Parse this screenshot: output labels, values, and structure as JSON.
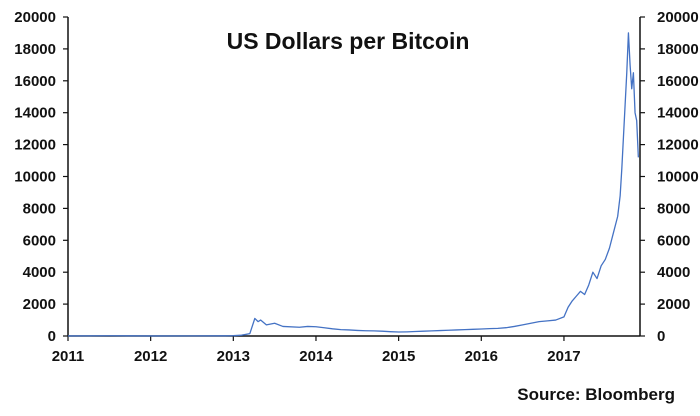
{
  "chart_data": {
    "type": "line",
    "title": "US Dollars per Bitcoin",
    "source": "Source: Bloomberg",
    "xlabel": "",
    "ylabel": "",
    "xlim": [
      2011.0,
      2017.92
    ],
    "ylim": [
      0,
      20000
    ],
    "x_ticks": [
      "2011",
      "2012",
      "2013",
      "2014",
      "2015",
      "2016",
      "2017"
    ],
    "y_ticks": [
      "0",
      "2000",
      "4000",
      "6000",
      "8000",
      "10000",
      "12000",
      "14000",
      "16000",
      "18000",
      "20000"
    ],
    "grid": false,
    "legend": "none",
    "colors": {
      "line": "#4472c4",
      "axis": "#111111",
      "text": "#111111"
    },
    "series": [
      {
        "x": [
          2011.0,
          2011.5,
          2012.0,
          2012.5,
          2012.9,
          2013.0,
          2013.1,
          2013.2,
          2013.26,
          2013.3,
          2013.33,
          2013.4,
          2013.5,
          2013.6,
          2013.8,
          2013.9,
          2014.0,
          2014.1,
          2014.2,
          2014.3,
          2014.4,
          2014.5,
          2014.6,
          2014.7,
          2014.8,
          2014.9,
          2015.0,
          2015.1,
          2015.2,
          2015.3,
          2015.4,
          2015.5,
          2015.6,
          2015.7,
          2015.8,
          2015.9,
          2016.0,
          2016.1,
          2016.2,
          2016.3,
          2016.4,
          2016.5,
          2016.6,
          2016.7,
          2016.8,
          2016.9,
          2017.0,
          2017.05,
          2017.1,
          2017.15,
          2017.2,
          2017.25,
          2017.3,
          2017.35,
          2017.4,
          2017.45,
          2017.5,
          2017.55,
          2017.6,
          2017.65,
          2017.68,
          2017.7,
          2017.72,
          2017.74,
          2017.76,
          2017.78,
          2017.8,
          2017.82,
          2017.84,
          2017.86,
          2017.88,
          2017.9
        ],
        "y": [
          5,
          15,
          5,
          10,
          12,
          20,
          50,
          150,
          1100,
          900,
          1000,
          700,
          800,
          600,
          550,
          600,
          580,
          520,
          450,
          400,
          380,
          350,
          330,
          320,
          300,
          270,
          250,
          260,
          280,
          300,
          320,
          340,
          360,
          380,
          400,
          420,
          440,
          460,
          480,
          520,
          600,
          700,
          800,
          900,
          950,
          1000,
          1200,
          1800,
          2200,
          2500,
          2800,
          2600,
          3200,
          4000,
          3600,
          4400,
          4800,
          5500,
          6500,
          7500,
          8800,
          10500,
          12500,
          14500,
          16500,
          19000,
          17000,
          15500,
          16500,
          14000,
          13500,
          11200
        ]
      }
    ]
  }
}
